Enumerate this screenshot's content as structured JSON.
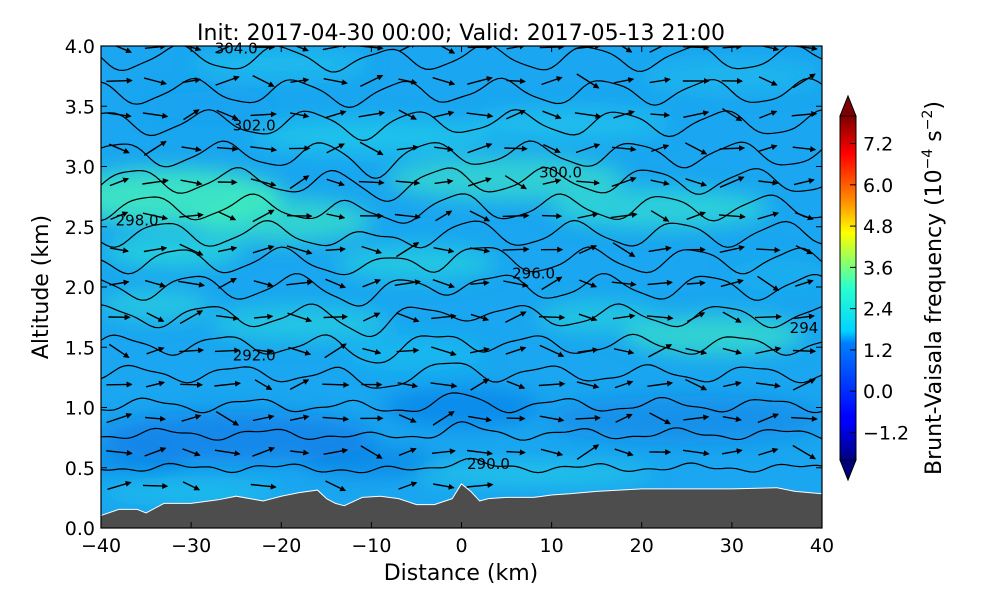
{
  "chart_data": {
    "type": "heatmap",
    "title": "Init: 2017-04-30 00:00; Valid: 2017-05-13 21:00",
    "xlabel": "Distance (km)",
    "ylabel": "Altitude (km)",
    "xlim": [
      -40,
      40
    ],
    "ylim": [
      0.0,
      4.0
    ],
    "x_ticks": [
      -40,
      -30,
      -20,
      -10,
      0,
      10,
      20,
      30,
      40
    ],
    "x_tick_labels": [
      "−40",
      "−30",
      "−20",
      "−10",
      "0",
      "10",
      "20",
      "30",
      "40"
    ],
    "y_ticks": [
      0.0,
      0.5,
      1.0,
      1.5,
      2.0,
      2.5,
      3.0,
      3.5,
      4.0
    ],
    "y_tick_labels": [
      "0.0",
      "0.5",
      "1.0",
      "1.5",
      "2.0",
      "2.5",
      "3.0",
      "3.5",
      "4.0"
    ],
    "colorbar": {
      "label": "Brunt-Vaisala frequency (10⁻⁴ s⁻²)",
      "label_main": "Brunt-Vaisala frequency (10",
      "label_exp1": "−4",
      "label_mid": " s",
      "label_exp2": "−2",
      "label_end": ")",
      "range": [
        -2.0,
        8.0
      ],
      "ticks": [
        -1.2,
        0.0,
        1.2,
        2.4,
        3.6,
        4.8,
        6.0,
        7.2
      ],
      "tick_labels": [
        "−1.2",
        "0.0",
        "1.2",
        "2.4",
        "3.6",
        "4.8",
        "6.0",
        "7.2"
      ],
      "colormap": "jet",
      "extend": "both"
    },
    "terrain": {
      "color": "#4d4d4d",
      "x": [
        -40,
        -38,
        -36,
        -35,
        -33,
        -30,
        -27,
        -25,
        -22,
        -20,
        -18,
        -16,
        -15,
        -14,
        -13,
        -11,
        -9,
        -7,
        -5,
        -3,
        -1,
        0,
        1,
        2,
        3,
        5,
        8,
        10,
        12,
        15,
        20,
        25,
        30,
        35,
        37,
        40
      ],
      "y": [
        0.1,
        0.15,
        0.15,
        0.12,
        0.2,
        0.2,
        0.23,
        0.26,
        0.22,
        0.26,
        0.29,
        0.31,
        0.24,
        0.2,
        0.18,
        0.25,
        0.26,
        0.24,
        0.19,
        0.19,
        0.24,
        0.36,
        0.3,
        0.22,
        0.24,
        0.25,
        0.25,
        0.27,
        0.28,
        0.3,
        0.32,
        0.32,
        0.32,
        0.33,
        0.3,
        0.28
      ]
    },
    "theta_contours": {
      "levels": [
        290,
        291,
        292,
        293,
        294,
        295,
        296,
        297,
        298,
        299,
        300,
        301,
        302,
        303,
        304
      ],
      "base_heights": [
        0.5,
        0.78,
        1.02,
        1.28,
        1.52,
        1.76,
        2.0,
        2.22,
        2.44,
        2.66,
        2.88,
        3.1,
        3.36,
        3.62,
        3.9
      ],
      "labels": [
        {
          "text": "290.0",
          "x": 3,
          "y": 0.53
        },
        {
          "text": "292.0",
          "x": -23,
          "y": 1.43
        },
        {
          "text": "294",
          "x": 38,
          "y": 1.66
        },
        {
          "text": "296.0",
          "x": 8,
          "y": 2.11
        },
        {
          "text": "298.0",
          "x": -36,
          "y": 2.55
        },
        {
          "text": "300.0",
          "x": 11,
          "y": 2.95
        },
        {
          "text": "302.0",
          "x": -23,
          "y": 3.34
        },
        {
          "text": "304.0",
          "x": -25,
          "y": 3.98
        }
      ]
    },
    "wind_vectors": {
      "x_spacing_km": 4,
      "z_spacing_km": 0.28,
      "dominant_direction": "eastward"
    },
    "grid": false,
    "legend": "none"
  }
}
